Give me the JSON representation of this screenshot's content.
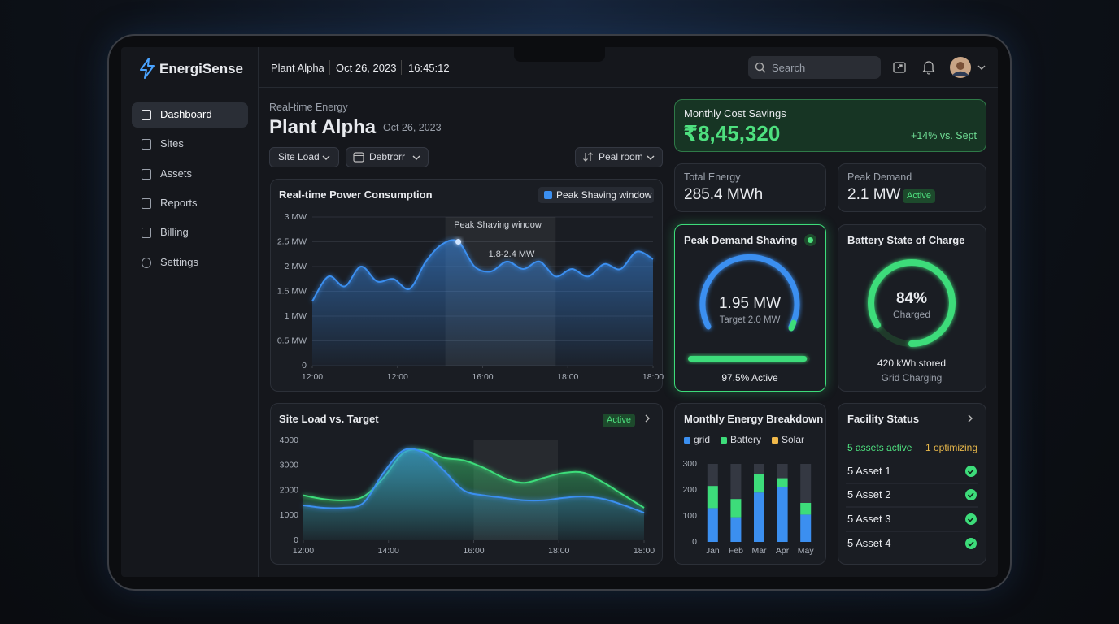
{
  "app": {
    "name": "EnergiSense",
    "nav": [
      "Dashboard",
      "Sites",
      "Assets",
      "Reports",
      "Billing",
      "Settings"
    ]
  },
  "topbar": {
    "site": "Plant Alpha",
    "date": "Oct 26, 2023",
    "time": "16:45:12",
    "search": "Search"
  },
  "header": {
    "eyebrow": "Real-time Energy",
    "title": "Plant Alpha",
    "date": "Oct 26, 2023",
    "filters": [
      "Site Load",
      "Debtrorr",
      "Peal room"
    ]
  },
  "cards": {
    "savings": {
      "label": "Monthly Cost Savings",
      "value": "₹8,45,320",
      "change": "+14% vs. Sept"
    },
    "total_energy": {
      "label": "Total Energy",
      "value": "285.4 MWh"
    },
    "peak_demand": {
      "label": "Peak Demand",
      "value": "2.1 MW",
      "badge": "Active"
    },
    "shaving": {
      "title": "Peak Demand Shaving",
      "value": "1.95 MW",
      "target": "Target 2.0 MW",
      "active": 97.5,
      "active_label": "97.5% Active"
    },
    "battery": {
      "title": "Battery State of Charge",
      "charge": 84,
      "charge_label": "84%",
      "state": "Charged",
      "stored": "420 kWh stored",
      "mode": "Grid Charging"
    }
  },
  "facility": {
    "title": "Facility Status",
    "summary": [
      "5 assets active",
      "1 optimizing"
    ],
    "assets": [
      "5 Asset 1",
      "5 Asset 2",
      "5 Asset 3",
      "5 Asset 4"
    ]
  },
  "chart_data": [
    {
      "type": "area",
      "title": "Real-time Power Consumption",
      "window": {
        "name": "Peak Shaving window",
        "range": [
          8.2,
          15
        ]
      },
      "annotations": [
        "Peak Shaving window",
        "1.8-2.4 MW"
      ],
      "x": [
        0,
        1,
        2,
        3,
        4,
        5,
        6,
        7,
        8,
        9,
        10,
        11,
        12,
        13,
        14,
        15,
        16,
        17,
        18,
        19,
        20,
        21
      ],
      "series": [
        {
          "color": "#3b8ff0",
          "values": [
            1.3,
            1.8,
            1.6,
            2.0,
            1.7,
            1.75,
            1.55,
            2.1,
            2.45,
            2.5,
            2.0,
            1.9,
            2.1,
            1.95,
            2.1,
            1.8,
            1.95,
            1.8,
            2.05,
            1.95,
            2.3,
            2.15
          ]
        }
      ],
      "xlim": [
        0,
        21
      ],
      "xticks": [
        {
          "value": 0,
          "label": "12:00"
        },
        {
          "value": 5.25,
          "label": "12:00"
        },
        {
          "value": 10.5,
          "label": "16:00"
        },
        {
          "value": 15.75,
          "label": "18:00"
        },
        {
          "value": 21,
          "label": "18:00"
        }
      ],
      "ylim": [
        0,
        3
      ],
      "yticks": [
        0,
        {
          "value": 0.5,
          "label": "0.5 MW"
        },
        {
          "value": 1,
          "label": "1 MW"
        },
        {
          "value": 1.5,
          "label": "1.5 MW"
        },
        {
          "value": 2,
          "label": "2 MW"
        },
        {
          "value": 2.5,
          "label": "2.5 MW"
        },
        {
          "value": 3,
          "label": "3 MW"
        }
      ],
      "grid": true
    },
    {
      "type": "area",
      "title": "Site Load vs. Target",
      "badge": "Active",
      "window": {
        "range": [
          8.5,
          12.7
        ]
      },
      "x": [
        0,
        1,
        2,
        3,
        4,
        5,
        6,
        7,
        8,
        9,
        10,
        11,
        12,
        13,
        14,
        15,
        16,
        17
      ],
      "series": [
        {
          "color": "#3ddc7a",
          "values": [
            1800,
            1650,
            1600,
            1750,
            2500,
            3500,
            3600,
            3300,
            3200,
            2900,
            2500,
            2300,
            2500,
            2700,
            2700,
            2300,
            1800,
            1300
          ]
        },
        {
          "color": "#3b8ff0",
          "values": [
            1400,
            1300,
            1300,
            1500,
            2700,
            3600,
            3500,
            2800,
            2000,
            1800,
            1700,
            1600,
            1600,
            1700,
            1750,
            1650,
            1400,
            1100
          ]
        }
      ],
      "xlim": [
        0,
        17
      ],
      "xticks": [
        {
          "value": 0,
          "label": "12:00"
        },
        {
          "value": 4.25,
          "label": "14:00"
        },
        {
          "value": 8.5,
          "label": "16:00"
        },
        {
          "value": 12.75,
          "label": "18:00"
        },
        {
          "value": 17,
          "label": "18:00"
        }
      ],
      "ylim": [
        0,
        4000
      ],
      "yticks": [
        0,
        1000,
        2000,
        3000,
        4000
      ],
      "grid": false
    },
    {
      "type": "stacked_bar",
      "title": "Monthly Energy Breakdown",
      "categories": [
        "Jan",
        "Feb",
        "Mar",
        "Apr",
        "May"
      ],
      "series": [
        {
          "name": "grid",
          "color": "#3b8ff0",
          "values": [
            130,
            95,
            190,
            210,
            105
          ]
        },
        {
          "name": "Battery",
          "color": "#3ddc7a",
          "values": [
            85,
            70,
            70,
            35,
            45
          ]
        },
        {
          "name": "Solar",
          "color": "#f1b94a",
          "values": [
            0,
            0,
            0,
            0,
            0
          ]
        }
      ],
      "ylim": [
        0,
        300
      ],
      "yticks": [
        0,
        100,
        200,
        300
      ]
    }
  ]
}
